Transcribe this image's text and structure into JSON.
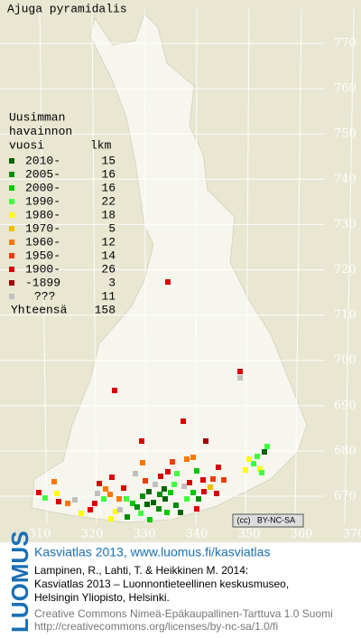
{
  "title": "Ajuga pyramidalis",
  "legend": {
    "heading": [
      "Uusimman",
      "havainnon",
      "vuosi"
    ],
    "count_header": "lkm",
    "rows": [
      {
        "label": "2010-",
        "count": 15,
        "color": "#006400"
      },
      {
        "label": "2005-",
        "count": 16,
        "color": "#008c00"
      },
      {
        "label": "2000-",
        "count": 16,
        "color": "#00c800"
      },
      {
        "label": "1990-",
        "count": 22,
        "color": "#40ff40"
      },
      {
        "label": "1980-",
        "count": 18,
        "color": "#ffff00"
      },
      {
        "label": "1970-",
        "count": 5,
        "color": "#f0c000"
      },
      {
        "label": "1960-",
        "count": 12,
        "color": "#ff7800"
      },
      {
        "label": "1950-",
        "count": 14,
        "color": "#f03c00"
      },
      {
        "label": "1900-",
        "count": 26,
        "color": "#d80000"
      },
      {
        "label": "-1899",
        "count": 3,
        "color": "#a00000"
      },
      {
        "label": "???",
        "count": 11,
        "color": "#c0c0c0"
      }
    ],
    "total_label": "Yhteensä",
    "total": 158
  },
  "grid_labels": {
    "north": [
      770,
      760,
      750,
      740,
      730,
      720,
      710,
      700,
      690,
      680,
      670
    ],
    "east": [
      310,
      320,
      330,
      340,
      350,
      360,
      370
    ]
  },
  "license_badge": [
    "(cc)",
    "BY-NC-SA"
  ],
  "footer": {
    "logo": "LUOMUS",
    "title": "Kasviatlas 2013, www.luomus.fi/kasviatlas",
    "citation": [
      "Lampinen, R., Lahti, T. & Heikkinen M. 2014:",
      "Kasviatlas 2013 – Luonnontieteellinen keskusmuseo,",
      "Helsingin Yliopisto, Helsinki."
    ],
    "license": [
      "Creative Commons Nimeä-Epäkaupallinen-Tarttuva 1.0 Suomi",
      "http://creativecommons.org/licenses/by-nc-sa/1.0/fi"
    ]
  }
}
